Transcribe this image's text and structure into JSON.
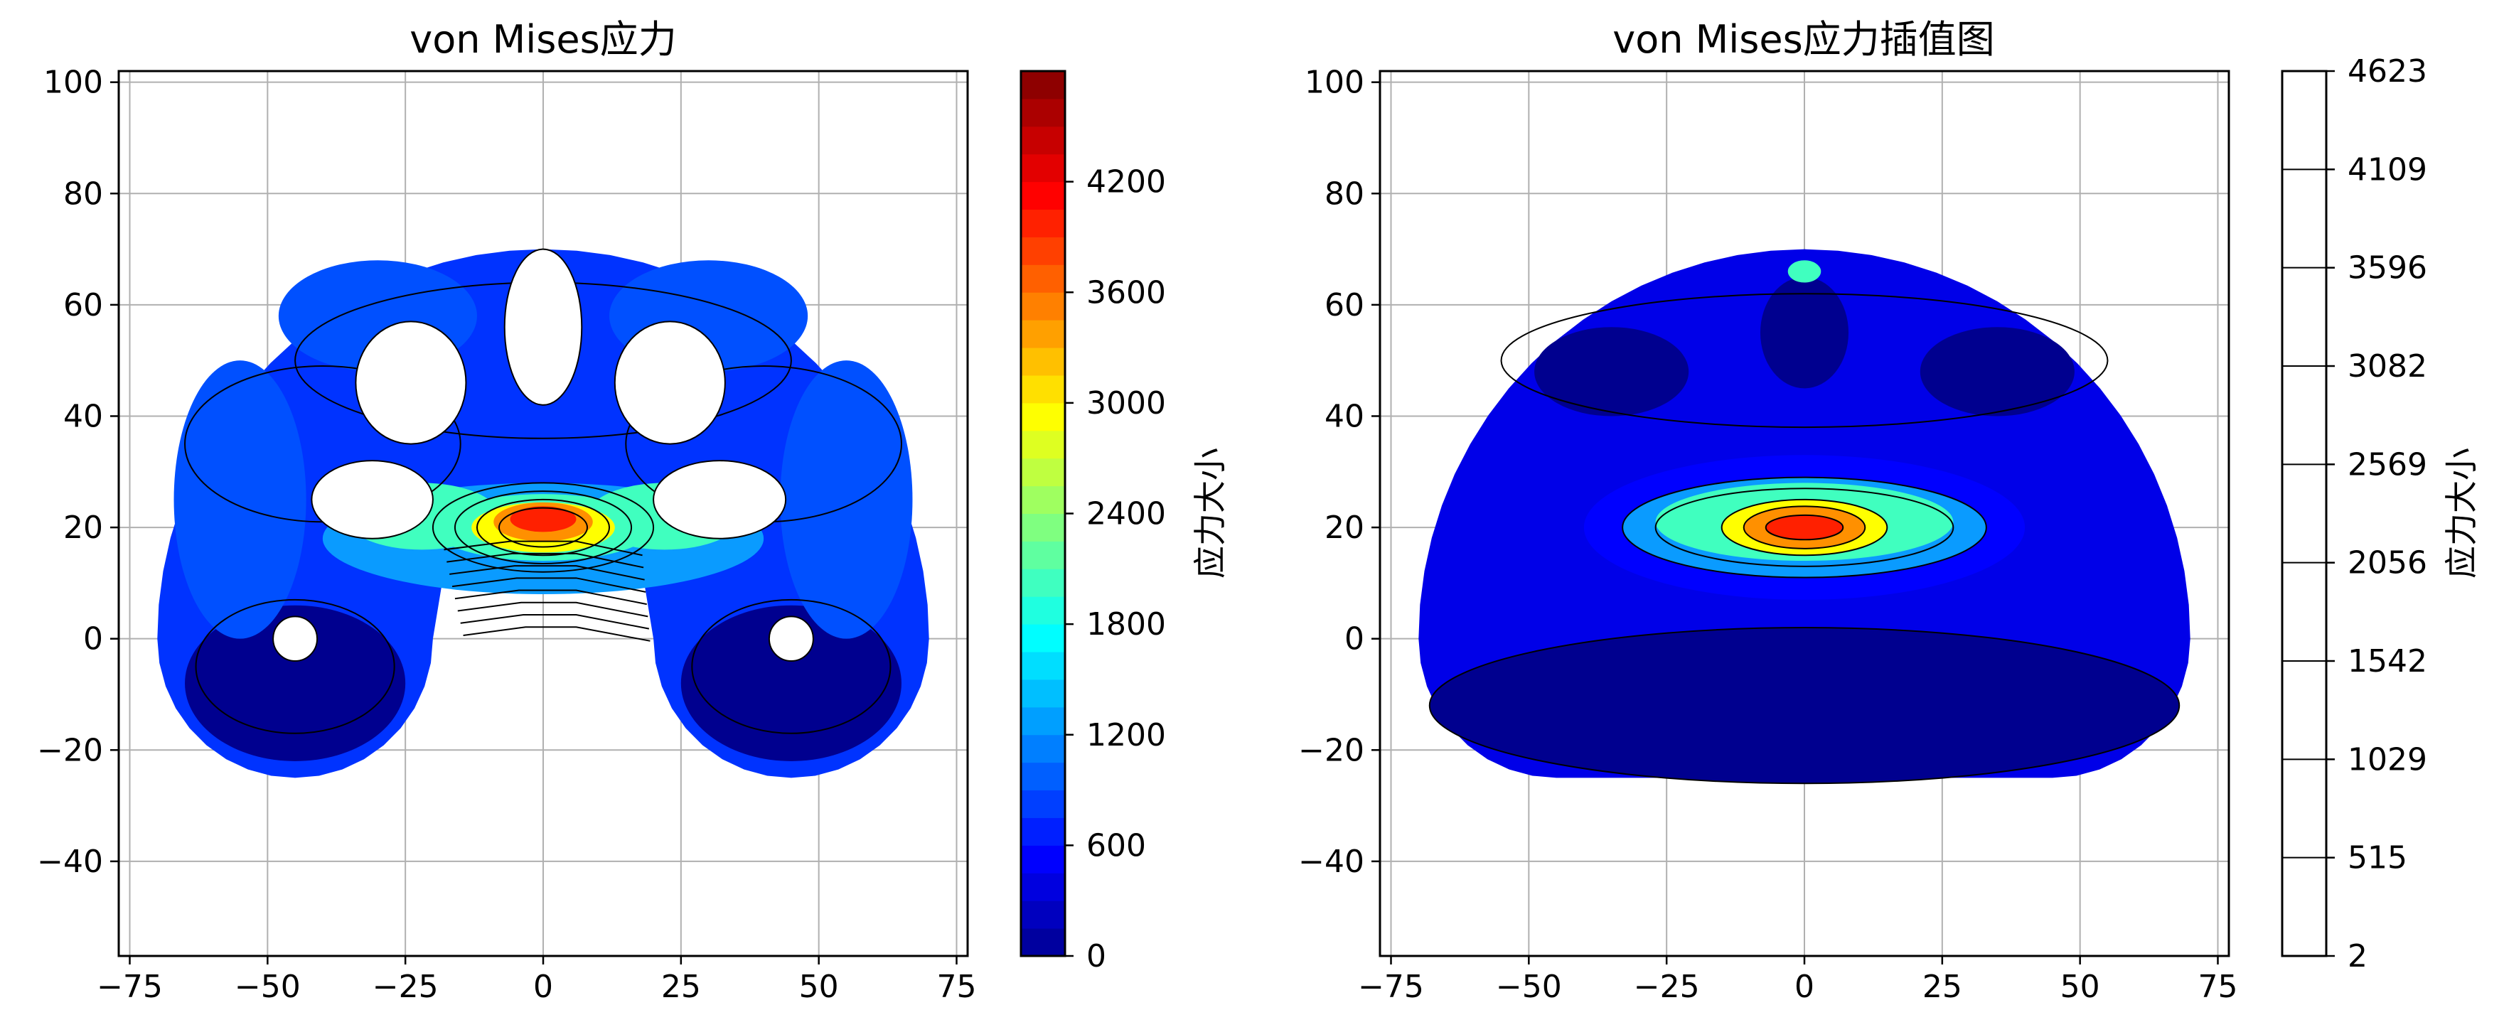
{
  "chart_data": [
    {
      "type": "contour",
      "title": "von Mises应力",
      "xlabel": "",
      "ylabel": "",
      "xlim": [
        -77,
        77
      ],
      "ylim": [
        -57,
        102
      ],
      "x_ticks": [
        "−75",
        "−50",
        "−25",
        "0",
        "25",
        "50",
        "75"
      ],
      "y_ticks": [
        "100",
        "80",
        "60",
        "40",
        "20",
        "0",
        "−20",
        "−40"
      ],
      "grid": true,
      "colormap": "jet",
      "colorbar": {
        "label": "应力大小",
        "range": [
          0,
          4800
        ],
        "ticks": [
          "0",
          "600",
          "1200",
          "1800",
          "2400",
          "3000",
          "3600",
          "4200"
        ]
      },
      "peak_value_region": {
        "x": 0,
        "y": 20
      },
      "holes": [
        {
          "x": -24,
          "y": 46
        },
        {
          "x": 0,
          "y": 56
        },
        {
          "x": 23,
          "y": 46
        },
        {
          "x": -31,
          "y": 25
        },
        {
          "x": 32,
          "y": 25
        },
        {
          "x": -45,
          "y": 0
        },
        {
          "x": 45,
          "y": 0
        }
      ]
    },
    {
      "type": "contour",
      "title": "von Mises应力插值图",
      "xlabel": "",
      "ylabel": "",
      "xlim": [
        -77,
        77
      ],
      "ylim": [
        -57,
        102
      ],
      "x_ticks": [
        "−75",
        "−50",
        "−25",
        "0",
        "25",
        "50",
        "75"
      ],
      "y_ticks": [
        "100",
        "80",
        "60",
        "40",
        "20",
        "0",
        "−20",
        "−40"
      ],
      "grid": true,
      "colormap": "jet",
      "colorbar": {
        "label": "应力大小",
        "range": [
          2,
          4623
        ],
        "ticks": [
          "2",
          "515",
          "1029",
          "1542",
          "2056",
          "2569",
          "3082",
          "3596",
          "4109",
          "4623"
        ]
      },
      "peak_value_region": {
        "x": 0,
        "y": 18
      }
    }
  ],
  "colors": {
    "dark_blue": "#00008f",
    "blue": "#0000ff",
    "mid_blue": "#0050ff",
    "light_blue": "#0a9bff",
    "cyan": "#00e0ff",
    "aqua": "#40ffbf",
    "green": "#9fff60",
    "yellow": "#ffff00",
    "orange": "#ff9000",
    "red": "#ff2000",
    "dark_red": "#8f0000"
  }
}
